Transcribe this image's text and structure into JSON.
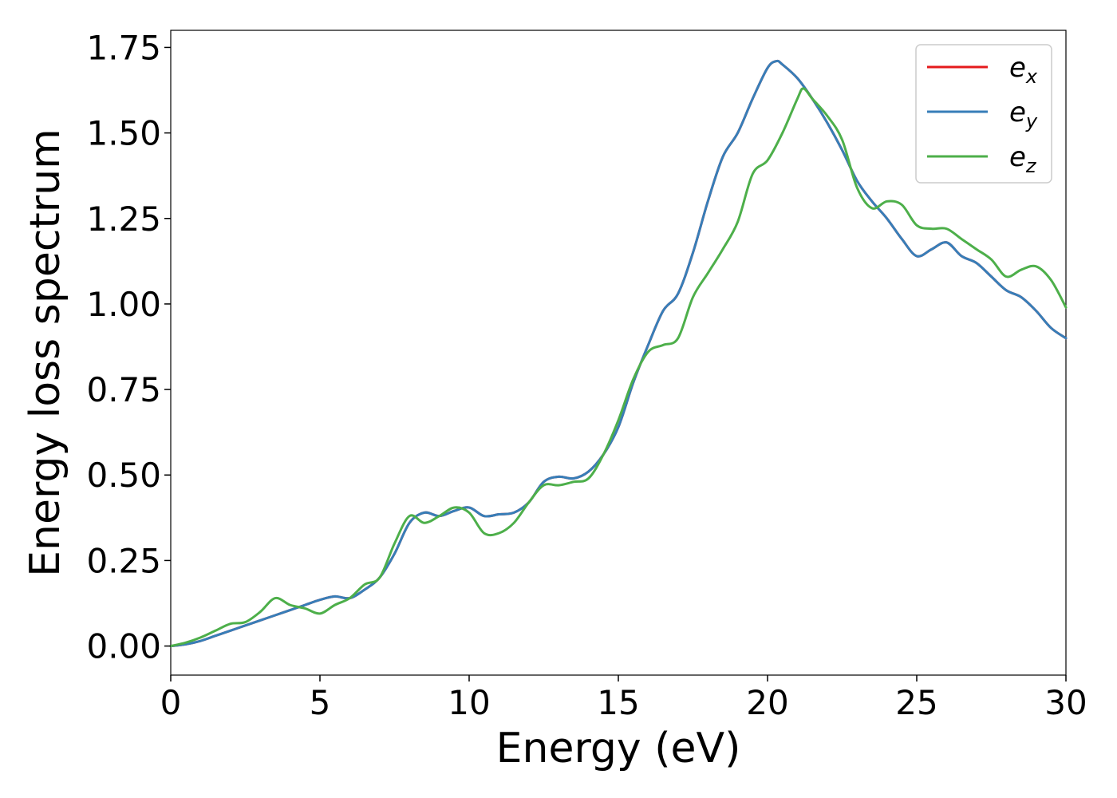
{
  "chart_data": {
    "type": "line",
    "title": "",
    "xlabel": "Energy (eV)",
    "ylabel": "Energy loss spectrum",
    "xlim": [
      0,
      30
    ],
    "ylim": [
      -0.085,
      1.8
    ],
    "xticks": [
      0,
      5,
      10,
      15,
      20,
      25,
      30
    ],
    "xtick_labels": [
      "0",
      "5",
      "10",
      "15",
      "20",
      "25",
      "30"
    ],
    "yticks": [
      0,
      0.25,
      0.5,
      0.75,
      1.0,
      1.25,
      1.5,
      1.75
    ],
    "ytick_labels": [
      "0.00",
      "0.25",
      "0.50",
      "0.75",
      "1.00",
      "1.25",
      "1.50",
      "1.75"
    ],
    "grid": false,
    "legend_position": "top-right",
    "series": [
      {
        "name": "e",
        "subscript": "x",
        "color": "#e41a1c",
        "x": [
          0,
          0.5,
          1,
          1.5,
          2,
          2.5,
          3,
          3.5,
          4,
          4.5,
          5,
          5.5,
          6,
          6.5,
          7,
          7.5,
          8,
          8.5,
          9,
          9.5,
          10,
          10.5,
          11,
          11.5,
          12,
          12.5,
          13,
          13.5,
          14,
          14.5,
          15,
          15.5,
          16,
          16.5,
          17,
          17.5,
          18,
          18.5,
          19,
          19.5,
          20,
          20.3,
          20.5,
          21,
          21.5,
          22,
          22.5,
          23,
          23.5,
          24,
          24.5,
          25,
          25.5,
          26,
          26.5,
          27,
          27.5,
          28,
          28.5,
          29,
          29.5,
          30
        ],
        "y": [
          0,
          0.005,
          0.015,
          0.03,
          0.045,
          0.06,
          0.075,
          0.09,
          0.105,
          0.12,
          0.135,
          0.145,
          0.14,
          0.165,
          0.2,
          0.27,
          0.36,
          0.39,
          0.38,
          0.395,
          0.405,
          0.38,
          0.385,
          0.39,
          0.42,
          0.48,
          0.495,
          0.49,
          0.51,
          0.56,
          0.64,
          0.77,
          0.88,
          0.98,
          1.03,
          1.15,
          1.3,
          1.43,
          1.5,
          1.6,
          1.69,
          1.71,
          1.7,
          1.66,
          1.6,
          1.53,
          1.45,
          1.36,
          1.3,
          1.25,
          1.19,
          1.14,
          1.16,
          1.18,
          1.14,
          1.12,
          1.08,
          1.04,
          1.02,
          0.98,
          0.93,
          0.9
        ]
      },
      {
        "name": "e",
        "subscript": "y",
        "color": "#377eb8",
        "x": [
          0,
          0.5,
          1,
          1.5,
          2,
          2.5,
          3,
          3.5,
          4,
          4.5,
          5,
          5.5,
          6,
          6.5,
          7,
          7.5,
          8,
          8.5,
          9,
          9.5,
          10,
          10.5,
          11,
          11.5,
          12,
          12.5,
          13,
          13.5,
          14,
          14.5,
          15,
          15.5,
          16,
          16.5,
          17,
          17.5,
          18,
          18.5,
          19,
          19.5,
          20,
          20.3,
          20.5,
          21,
          21.5,
          22,
          22.5,
          23,
          23.5,
          24,
          24.5,
          25,
          25.5,
          26,
          26.5,
          27,
          27.5,
          28,
          28.5,
          29,
          29.5,
          30
        ],
        "y": [
          0,
          0.005,
          0.015,
          0.03,
          0.045,
          0.06,
          0.075,
          0.09,
          0.105,
          0.12,
          0.135,
          0.145,
          0.14,
          0.165,
          0.2,
          0.27,
          0.36,
          0.39,
          0.38,
          0.395,
          0.405,
          0.38,
          0.385,
          0.39,
          0.42,
          0.48,
          0.495,
          0.49,
          0.51,
          0.56,
          0.64,
          0.77,
          0.88,
          0.98,
          1.03,
          1.15,
          1.3,
          1.43,
          1.5,
          1.6,
          1.69,
          1.71,
          1.7,
          1.66,
          1.6,
          1.53,
          1.45,
          1.36,
          1.3,
          1.25,
          1.19,
          1.14,
          1.16,
          1.18,
          1.14,
          1.12,
          1.08,
          1.04,
          1.02,
          0.98,
          0.93,
          0.9
        ]
      },
      {
        "name": "e",
        "subscript": "z",
        "color": "#4daf4a",
        "x": [
          0,
          0.5,
          1,
          1.5,
          2,
          2.5,
          3,
          3.5,
          4,
          4.5,
          5,
          5.5,
          6,
          6.5,
          7,
          7.5,
          8,
          8.5,
          9,
          9.5,
          10,
          10.5,
          11,
          11.5,
          12,
          12.5,
          13,
          13.5,
          14,
          14.5,
          15,
          15.5,
          16,
          16.5,
          17,
          17.5,
          18,
          18.5,
          19,
          19.5,
          20,
          20.5,
          21,
          21.2,
          21.5,
          22,
          22.5,
          23,
          23.5,
          24,
          24.5,
          25,
          25.5,
          26,
          26.5,
          27,
          27.5,
          28,
          28.5,
          29,
          29.5,
          30
        ],
        "y": [
          0,
          0.01,
          0.025,
          0.045,
          0.065,
          0.07,
          0.1,
          0.14,
          0.12,
          0.11,
          0.095,
          0.12,
          0.14,
          0.18,
          0.2,
          0.3,
          0.38,
          0.36,
          0.38,
          0.405,
          0.39,
          0.33,
          0.33,
          0.36,
          0.42,
          0.47,
          0.47,
          0.48,
          0.49,
          0.56,
          0.66,
          0.78,
          0.86,
          0.88,
          0.9,
          1.02,
          1.09,
          1.16,
          1.24,
          1.38,
          1.42,
          1.5,
          1.6,
          1.63,
          1.6,
          1.55,
          1.48,
          1.34,
          1.28,
          1.3,
          1.29,
          1.23,
          1.22,
          1.22,
          1.19,
          1.16,
          1.13,
          1.08,
          1.1,
          1.11,
          1.07,
          0.99
        ]
      }
    ]
  }
}
